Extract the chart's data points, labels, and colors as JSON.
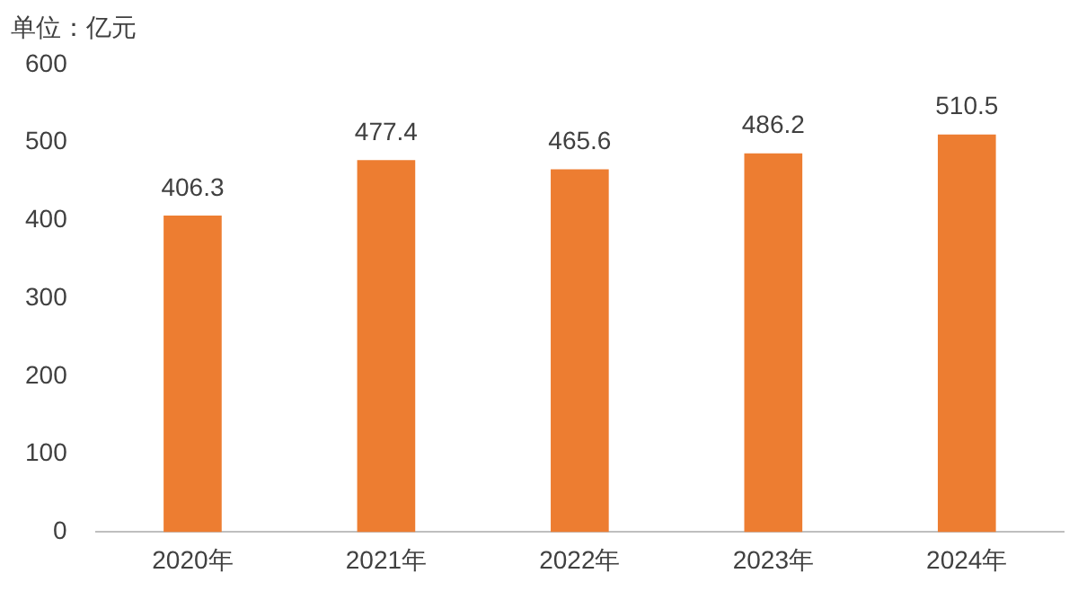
{
  "chart_data": {
    "type": "bar",
    "ylabel": "单位：亿元",
    "categories": [
      "2020年",
      "2021年",
      "2022年",
      "2023年",
      "2024年"
    ],
    "values": [
      406.3,
      477.4,
      465.6,
      486.2,
      510.5
    ],
    "color": "#ed7d31",
    "ylim": [
      0,
      600
    ],
    "yticks": [
      0,
      100,
      200,
      300,
      400,
      500,
      600
    ],
    "grid": false,
    "legend": false,
    "data_labels": true
  }
}
